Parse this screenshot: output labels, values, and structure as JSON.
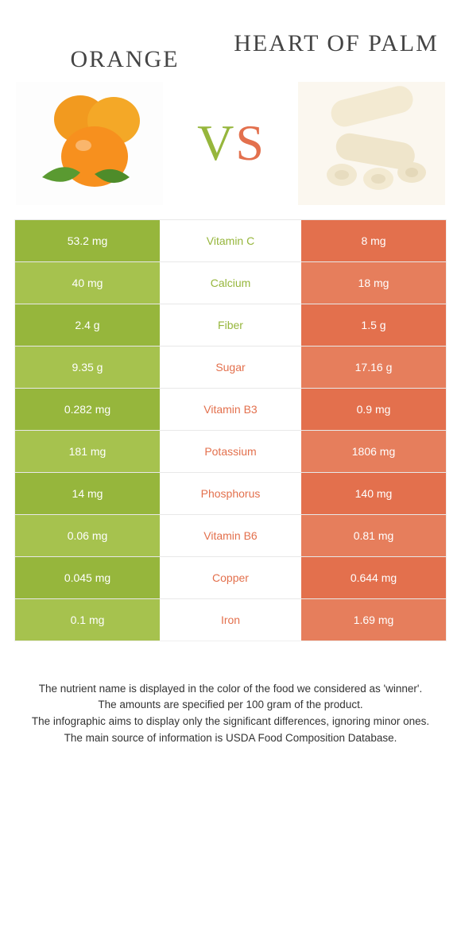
{
  "foods": {
    "left": {
      "name": "ORANGE",
      "color": "#96b63c"
    },
    "right": {
      "name": "HEART OF PALM",
      "color": "#e3704d"
    }
  },
  "vs": {
    "left_char": "V",
    "right_char": "S"
  },
  "rows": [
    {
      "nutrient": "Vitamin C",
      "left": "53.2 mg",
      "right": "8 mg",
      "winner": "left"
    },
    {
      "nutrient": "Calcium",
      "left": "40 mg",
      "right": "18 mg",
      "winner": "left"
    },
    {
      "nutrient": "Fiber",
      "left": "2.4 g",
      "right": "1.5 g",
      "winner": "left"
    },
    {
      "nutrient": "Sugar",
      "left": "9.35 g",
      "right": "17.16 g",
      "winner": "right"
    },
    {
      "nutrient": "Vitamin B3",
      "left": "0.282 mg",
      "right": "0.9 mg",
      "winner": "right"
    },
    {
      "nutrient": "Potassium",
      "left": "181 mg",
      "right": "1806 mg",
      "winner": "right"
    },
    {
      "nutrient": "Phosphorus",
      "left": "14 mg",
      "right": "140 mg",
      "winner": "right"
    },
    {
      "nutrient": "Vitamin B6",
      "left": "0.06 mg",
      "right": "0.81 mg",
      "winner": "right"
    },
    {
      "nutrient": "Copper",
      "left": "0.045 mg",
      "right": "0.644 mg",
      "winner": "right"
    },
    {
      "nutrient": "Iron",
      "left": "0.1 mg",
      "right": "1.69 mg",
      "winner": "right"
    }
  ],
  "footnotes": {
    "l1": "The nutrient name is displayed in the color of the food we considered as 'winner'.",
    "l2": "The amounts are specified per 100 gram of the product.",
    "l3": "The infographic aims to display only the significant differences, ignoring minor ones.",
    "l4": "The main source of information is USDA Food Composition Database."
  },
  "style": {
    "left_color": "#96b63c",
    "right_color": "#e3704d",
    "left_color_light": "#a6c24e",
    "right_color_light": "#e67e5c",
    "row_border": "#e8e8e8",
    "title_fontsize": 30,
    "vs_fontsize": 64,
    "cell_fontsize": 14,
    "foot_fontsize": 13.5,
    "background": "#ffffff"
  }
}
